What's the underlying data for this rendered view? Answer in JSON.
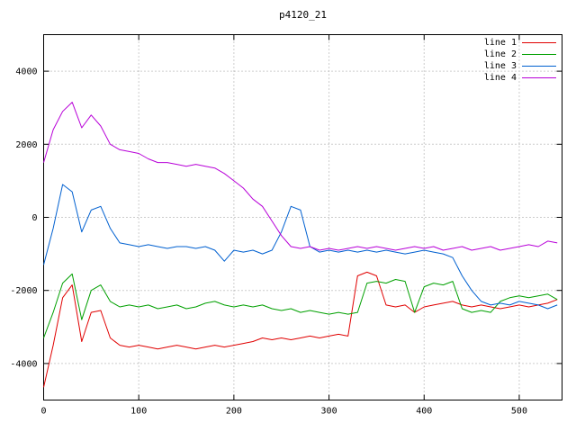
{
  "chart_data": {
    "type": "line",
    "title": "p4120_21",
    "xlabel": "",
    "ylabel": "",
    "xlim": [
      0,
      545
    ],
    "ylim": [
      -5000,
      5000
    ],
    "xticks": [
      0,
      100,
      200,
      300,
      400,
      500
    ],
    "yticks": [
      -4000,
      -2000,
      0,
      2000,
      4000
    ],
    "grid": true,
    "grid_style": "dotted",
    "legend_position": "top-right-inside",
    "background": "#ffffff",
    "border_color": "#000000",
    "grid_color": "#9a9a9a",
    "x_start": 0,
    "x_step": 10,
    "series": [
      {
        "name": "line 1",
        "color": "#e00000",
        "values": [
          -4650,
          -3500,
          -2200,
          -1850,
          -3400,
          -2600,
          -2550,
          -3300,
          -3500,
          -3550,
          -3500,
          -3550,
          -3600,
          -3550,
          -3500,
          -3550,
          -3600,
          -3550,
          -3500,
          -3550,
          -3500,
          -3450,
          -3400,
          -3300,
          -3350,
          -3300,
          -3350,
          -3300,
          -3250,
          -3300,
          -3250,
          -3200,
          -3250,
          -1600,
          -1500,
          -1600,
          -2400,
          -2450,
          -2400,
          -2600,
          -2450,
          -2400,
          -2350,
          -2300,
          -2400,
          -2450,
          -2400,
          -2450,
          -2500,
          -2450,
          -2400,
          -2450,
          -2400,
          -2350,
          -2250
        ]
      },
      {
        "name": "line 2",
        "color": "#00a000",
        "values": [
          -3300,
          -2600,
          -1800,
          -1550,
          -2800,
          -2000,
          -1850,
          -2300,
          -2450,
          -2400,
          -2450,
          -2400,
          -2500,
          -2450,
          -2400,
          -2500,
          -2450,
          -2350,
          -2300,
          -2400,
          -2450,
          -2400,
          -2450,
          -2400,
          -2500,
          -2550,
          -2500,
          -2600,
          -2550,
          -2600,
          -2650,
          -2600,
          -2650,
          -2600,
          -1800,
          -1750,
          -1800,
          -1700,
          -1750,
          -2600,
          -1900,
          -1800,
          -1850,
          -1750,
          -2500,
          -2600,
          -2550,
          -2600,
          -2300,
          -2200,
          -2150,
          -2200,
          -2150,
          -2100,
          -2250
        ]
      },
      {
        "name": "line 3",
        "color": "#0060d0",
        "values": [
          -1300,
          -300,
          900,
          700,
          -400,
          200,
          300,
          -300,
          -700,
          -750,
          -800,
          -750,
          -800,
          -850,
          -800,
          -800,
          -850,
          -800,
          -900,
          -1200,
          -900,
          -950,
          -900,
          -1000,
          -900,
          -400,
          300,
          200,
          -800,
          -950,
          -900,
          -950,
          -900,
          -950,
          -900,
          -950,
          -900,
          -950,
          -1000,
          -950,
          -900,
          -950,
          -1000,
          -1100,
          -1600,
          -2000,
          -2300,
          -2400,
          -2350,
          -2400,
          -2300,
          -2350,
          -2400,
          -2500,
          -2400
        ]
      },
      {
        "name": "line 4",
        "color": "#b800d8",
        "values": [
          1500,
          2400,
          2900,
          3150,
          2450,
          2800,
          2500,
          2000,
          1850,
          1800,
          1750,
          1600,
          1500,
          1500,
          1450,
          1400,
          1450,
          1400,
          1350,
          1200,
          1000,
          800,
          500,
          300,
          -100,
          -500,
          -800,
          -850,
          -800,
          -900,
          -850,
          -900,
          -850,
          -800,
          -850,
          -800,
          -850,
          -900,
          -850,
          -800,
          -850,
          -800,
          -900,
          -850,
          -800,
          -900,
          -850,
          -800,
          -900,
          -850,
          -800,
          -750,
          -800,
          -650,
          -700
        ]
      }
    ]
  }
}
